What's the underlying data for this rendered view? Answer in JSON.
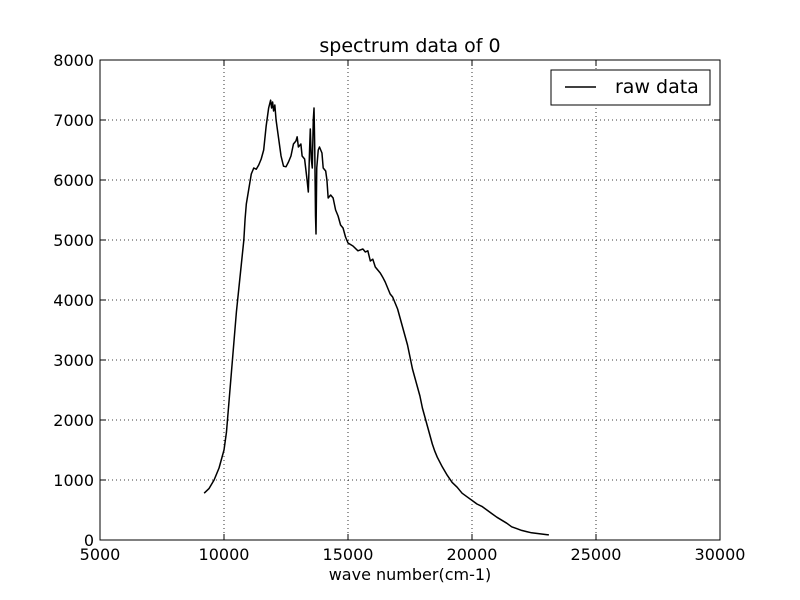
{
  "chart_data": {
    "type": "line",
    "title": "spectrum data of 0",
    "xlabel": "wave number(cm-1)",
    "ylabel": "",
    "xlim": [
      5000,
      30000
    ],
    "ylim": [
      0,
      8000
    ],
    "xticks": [
      5000,
      10000,
      15000,
      20000,
      25000,
      30000
    ],
    "yticks": [
      0,
      1000,
      2000,
      3000,
      4000,
      5000,
      6000,
      7000,
      8000
    ],
    "grid": true,
    "legend": {
      "position": "top-right",
      "entries": [
        "raw data"
      ]
    },
    "series": [
      {
        "name": "raw data",
        "color": "#000000",
        "points": [
          [
            9200,
            780
          ],
          [
            9400,
            860
          ],
          [
            9600,
            1000
          ],
          [
            9800,
            1200
          ],
          [
            10000,
            1500
          ],
          [
            10100,
            1800
          ],
          [
            10200,
            2300
          ],
          [
            10300,
            2800
          ],
          [
            10400,
            3300
          ],
          [
            10500,
            3800
          ],
          [
            10600,
            4200
          ],
          [
            10700,
            4600
          ],
          [
            10800,
            5000
          ],
          [
            10850,
            5350
          ],
          [
            10900,
            5600
          ],
          [
            11000,
            5850
          ],
          [
            11100,
            6100
          ],
          [
            11200,
            6200
          ],
          [
            11300,
            6180
          ],
          [
            11400,
            6250
          ],
          [
            11500,
            6350
          ],
          [
            11600,
            6500
          ],
          [
            11700,
            6900
          ],
          [
            11800,
            7200
          ],
          [
            11880,
            7330
          ],
          [
            11920,
            7200
          ],
          [
            11960,
            7300
          ],
          [
            12000,
            7150
          ],
          [
            12050,
            7250
          ],
          [
            12100,
            7000
          ],
          [
            12200,
            6700
          ],
          [
            12300,
            6400
          ],
          [
            12400,
            6230
          ],
          [
            12500,
            6220
          ],
          [
            12600,
            6300
          ],
          [
            12700,
            6400
          ],
          [
            12800,
            6600
          ],
          [
            12900,
            6650
          ],
          [
            12950,
            6720
          ],
          [
            13000,
            6550
          ],
          [
            13100,
            6600
          ],
          [
            13150,
            6400
          ],
          [
            13250,
            6350
          ],
          [
            13350,
            6000
          ],
          [
            13400,
            5800
          ],
          [
            13450,
            6500
          ],
          [
            13480,
            6850
          ],
          [
            13520,
            6350
          ],
          [
            13560,
            6200
          ],
          [
            13600,
            7000
          ],
          [
            13630,
            7200
          ],
          [
            13660,
            6500
          ],
          [
            13690,
            5400
          ],
          [
            13710,
            5100
          ],
          [
            13740,
            6200
          ],
          [
            13800,
            6500
          ],
          [
            13850,
            6550
          ],
          [
            13950,
            6450
          ],
          [
            14000,
            6200
          ],
          [
            14100,
            6150
          ],
          [
            14150,
            6000
          ],
          [
            14200,
            5700
          ],
          [
            14300,
            5750
          ],
          [
            14400,
            5700
          ],
          [
            14500,
            5500
          ],
          [
            14600,
            5400
          ],
          [
            14700,
            5250
          ],
          [
            14800,
            5200
          ],
          [
            14900,
            5050
          ],
          [
            15000,
            4950
          ],
          [
            15200,
            4900
          ],
          [
            15400,
            4820
          ],
          [
            15600,
            4850
          ],
          [
            15700,
            4800
          ],
          [
            15800,
            4820
          ],
          [
            15900,
            4650
          ],
          [
            16000,
            4680
          ],
          [
            16100,
            4550
          ],
          [
            16200,
            4500
          ],
          [
            16300,
            4450
          ],
          [
            16400,
            4380
          ],
          [
            16500,
            4300
          ],
          [
            16600,
            4200
          ],
          [
            16700,
            4100
          ],
          [
            16800,
            4050
          ],
          [
            16900,
            3950
          ],
          [
            17000,
            3850
          ],
          [
            17100,
            3700
          ],
          [
            17200,
            3550
          ],
          [
            17300,
            3400
          ],
          [
            17400,
            3250
          ],
          [
            17500,
            3050
          ],
          [
            17600,
            2850
          ],
          [
            17700,
            2700
          ],
          [
            17800,
            2550
          ],
          [
            17900,
            2400
          ],
          [
            18000,
            2200
          ],
          [
            18100,
            2050
          ],
          [
            18200,
            1900
          ],
          [
            18300,
            1750
          ],
          [
            18400,
            1600
          ],
          [
            18500,
            1480
          ],
          [
            18600,
            1380
          ],
          [
            18800,
            1220
          ],
          [
            19000,
            1080
          ],
          [
            19200,
            960
          ],
          [
            19400,
            880
          ],
          [
            19600,
            780
          ],
          [
            19800,
            720
          ],
          [
            20000,
            660
          ],
          [
            20200,
            600
          ],
          [
            20400,
            560
          ],
          [
            20600,
            500
          ],
          [
            20800,
            440
          ],
          [
            21000,
            380
          ],
          [
            21200,
            330
          ],
          [
            21400,
            280
          ],
          [
            21600,
            220
          ],
          [
            21800,
            190
          ],
          [
            22000,
            160
          ],
          [
            22200,
            140
          ],
          [
            22400,
            120
          ],
          [
            22600,
            110
          ],
          [
            22800,
            100
          ],
          [
            23000,
            90
          ],
          [
            23100,
            85
          ]
        ]
      }
    ]
  }
}
